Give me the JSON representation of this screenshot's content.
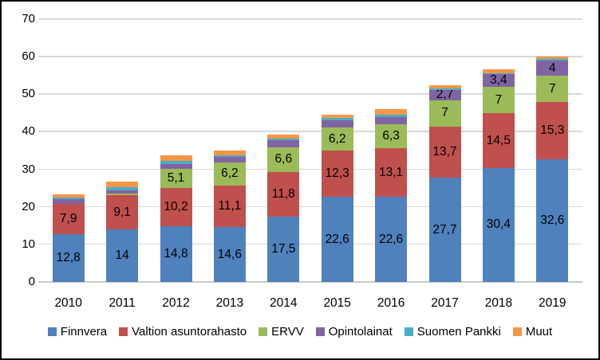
{
  "chart_data": {
    "type": "bar",
    "stacked": true,
    "title": "",
    "categories": [
      "2010",
      "2011",
      "2012",
      "2013",
      "2014",
      "2015",
      "2016",
      "2017",
      "2018",
      "2019"
    ],
    "series": [
      {
        "name": "Finnvera",
        "color": "#4F81BD",
        "values": [
          12.8,
          14,
          14.8,
          14.6,
          17.5,
          22.6,
          22.6,
          27.7,
          30.4,
          32.6
        ],
        "labels": [
          "12,8",
          "14",
          "14,8",
          "14,6",
          "17,5",
          "22,6",
          "22,6",
          "27,7",
          "30,4",
          "32,6"
        ]
      },
      {
        "name": "Valtion asuntorahasto",
        "color": "#C0504D",
        "values": [
          7.9,
          9.1,
          10.2,
          11.1,
          11.8,
          12.3,
          13.1,
          13.7,
          14.5,
          15.3
        ],
        "labels": [
          "7,9",
          "9,1",
          "10,2",
          "11,1",
          "11,8",
          "12,3",
          "13,1",
          "13,7",
          "14,5",
          "15,3"
        ]
      },
      {
        "name": "ERVV",
        "color": "#9BBB59",
        "values": [
          0,
          0.4,
          5.1,
          6.2,
          6.6,
          6.2,
          6.3,
          7,
          7,
          7
        ],
        "labels": [
          null,
          null,
          "5,1",
          "6,2",
          "6,6",
          "6,2",
          "6,3",
          "7",
          "7",
          "7"
        ]
      },
      {
        "name": "Opintolainat",
        "color": "#8064A2",
        "values": [
          1.4,
          0.9,
          1.4,
          1.3,
          1.8,
          2.0,
          2.0,
          2.7,
          3.4,
          4
        ],
        "labels": [
          null,
          null,
          null,
          null,
          null,
          null,
          null,
          "2,7",
          "3,4",
          "4"
        ]
      },
      {
        "name": "Suomen Pankki",
        "color": "#4BACC6",
        "values": [
          0.3,
          0.9,
          0.8,
          0.6,
          0.5,
          0.5,
          0.6,
          0.4,
          0.3,
          0.4
        ],
        "labels": [
          null,
          null,
          null,
          null,
          null,
          null,
          null,
          null,
          null,
          null
        ]
      },
      {
        "name": "Muut",
        "color": "#F79646",
        "values": [
          1.0,
          1.4,
          1.4,
          1.1,
          1.1,
          1.0,
          1.5,
          0.8,
          1.0,
          0.8
        ],
        "labels": [
          null,
          null,
          null,
          null,
          null,
          null,
          null,
          null,
          null,
          null
        ]
      }
    ],
    "y_axis": {
      "min": 0,
      "max": 70,
      "step": 10,
      "tick_labels": [
        "0",
        "10",
        "20",
        "30",
        "40",
        "50",
        "60",
        "70"
      ]
    },
    "grid": true,
    "legend_position": "bottom",
    "decimal_separator": ","
  },
  "style_colors": {
    "background": "#FFFFFF",
    "border": "#000000",
    "gridline": "#D9D9D9",
    "axis_line": "#C9C9C9",
    "text": "#000000"
  }
}
